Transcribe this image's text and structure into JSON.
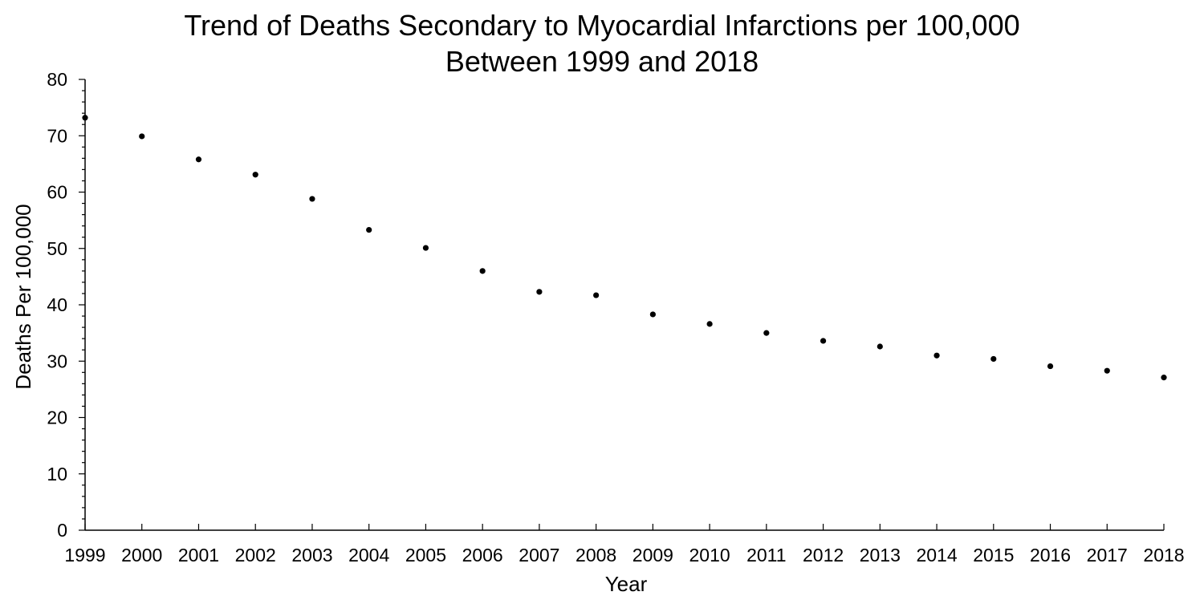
{
  "chart_data": {
    "type": "scatter",
    "title": "Trend of Deaths Secondary to Myocardial Infarctions per 100,000",
    "subtitle": "Between 1999 and 2018",
    "xlabel": "Year",
    "ylabel": "Deaths Per 100,000",
    "x": [
      "1999",
      "2000",
      "2001",
      "2002",
      "2003",
      "2004",
      "2005",
      "2006",
      "2007",
      "2008",
      "2009",
      "2010",
      "2011",
      "2012",
      "2013",
      "2014",
      "2015",
      "2016",
      "2017",
      "2018"
    ],
    "values": [
      73.2,
      69.9,
      65.8,
      63.1,
      58.8,
      53.3,
      50.1,
      46.0,
      42.3,
      41.7,
      38.3,
      36.6,
      35.0,
      33.6,
      32.6,
      31.0,
      30.4,
      29.1,
      28.3,
      27.1
    ],
    "ylim": [
      0,
      80
    ],
    "yticks": [
      "0",
      "10",
      "20",
      "30",
      "40",
      "50",
      "60",
      "70",
      "80"
    ],
    "grid": false,
    "legend": "none",
    "marker_color": "#000000"
  }
}
